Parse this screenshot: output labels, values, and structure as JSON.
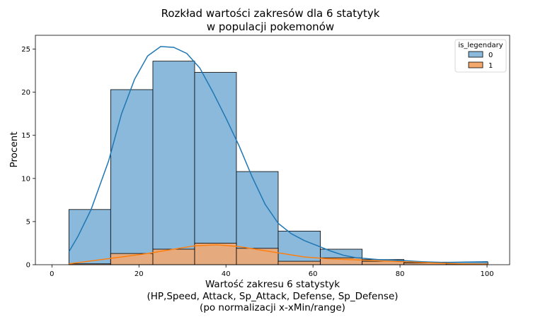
{
  "chart_data": {
    "type": "histogram",
    "title_lines": [
      "Rozkład wartości zakresów dla 6 statytyk",
      "w populacji pokemonów"
    ],
    "xlabel_lines": [
      "Wartość zakresu 6 statystyk",
      "(HP,Speed, Attack, Sp_Attack, Defense, Sp_Defense)",
      "(po normalizacji x-xMin/range)"
    ],
    "ylabel": "Procent",
    "xlim": [
      -3.8,
      105.2
    ],
    "ylim": [
      0,
      26.6
    ],
    "xticks": [
      0,
      20,
      40,
      60,
      80,
      100
    ],
    "yticks": [
      0,
      5,
      10,
      15,
      20,
      25
    ],
    "bin_edges": [
      3.9,
      13.5,
      23.2,
      32.8,
      42.4,
      52.0,
      61.7,
      71.3,
      80.9,
      90.6,
      100.2
    ],
    "legend": {
      "title": "is_legendary",
      "position": "top-right"
    },
    "series": [
      {
        "name": "0",
        "color": "#1f77b4",
        "fill": "#8ab9dc",
        "values": [
          6.4,
          20.3,
          23.6,
          22.3,
          10.8,
          3.9,
          1.8,
          0.6,
          0.3,
          0.3
        ],
        "kde": [
          [
            3.9,
            1.5
          ],
          [
            6,
            3.3
          ],
          [
            9,
            6.4
          ],
          [
            13,
            12.0
          ],
          [
            16,
            17.5
          ],
          [
            19,
            21.5
          ],
          [
            22,
            24.2
          ],
          [
            25,
            25.3
          ],
          [
            28,
            25.2
          ],
          [
            31,
            24.5
          ],
          [
            34,
            22.8
          ],
          [
            37,
            20.0
          ],
          [
            40,
            17.0
          ],
          [
            43,
            13.8
          ],
          [
            46,
            10.2
          ],
          [
            49,
            7.0
          ],
          [
            52,
            4.8
          ],
          [
            55,
            3.6
          ],
          [
            58,
            2.8
          ],
          [
            61,
            2.2
          ],
          [
            64,
            1.6
          ],
          [
            67,
            1.1
          ],
          [
            70,
            0.8
          ],
          [
            75,
            0.6
          ],
          [
            80,
            0.5
          ],
          [
            85,
            0.35
          ],
          [
            90,
            0.25
          ],
          [
            95,
            0.3
          ],
          [
            100.2,
            0.35
          ]
        ]
      },
      {
        "name": "1",
        "color": "#ff7f0e",
        "fill": "#f4a76c",
        "values": [
          0.1,
          1.3,
          1.8,
          2.5,
          1.9,
          0.4,
          0.8,
          0.4,
          0.2,
          0.1
        ],
        "kde": [
          [
            3.9,
            0.1
          ],
          [
            10,
            0.5
          ],
          [
            16,
            0.9
          ],
          [
            22,
            1.3
          ],
          [
            28,
            1.8
          ],
          [
            33,
            2.2
          ],
          [
            38,
            2.3
          ],
          [
            43,
            2.1
          ],
          [
            48,
            1.7
          ],
          [
            53,
            1.3
          ],
          [
            58,
            0.9
          ],
          [
            63,
            0.7
          ],
          [
            68,
            0.6
          ],
          [
            73,
            0.5
          ],
          [
            78,
            0.4
          ],
          [
            83,
            0.3
          ],
          [
            88,
            0.2
          ],
          [
            94,
            0.1
          ],
          [
            100.2,
            0.05
          ]
        ]
      }
    ]
  }
}
